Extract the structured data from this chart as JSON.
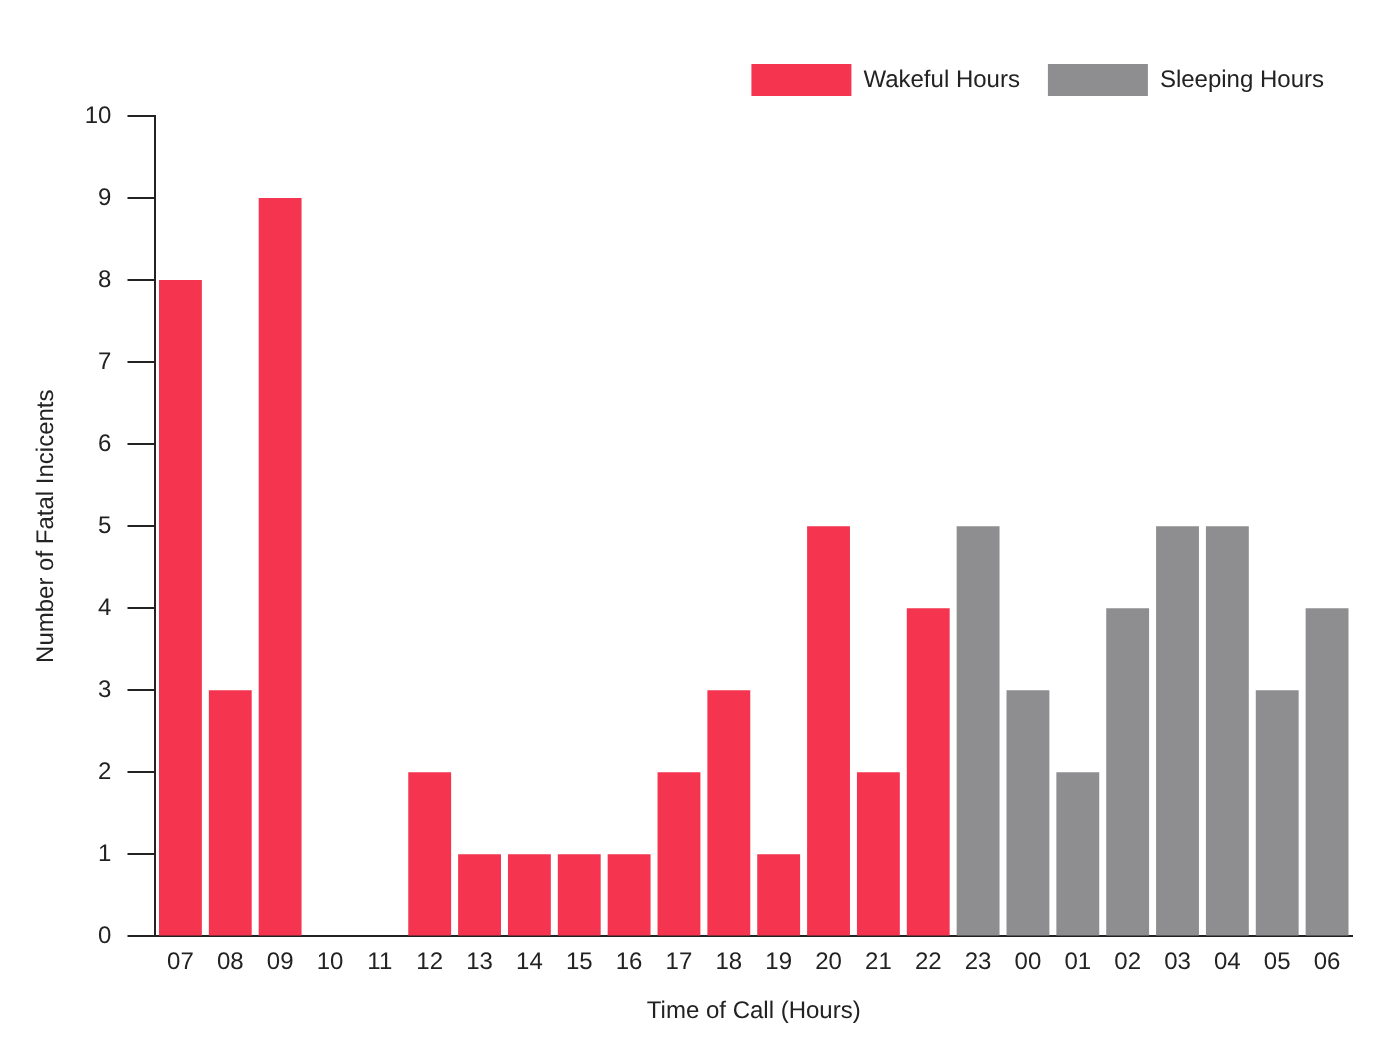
{
  "chart_data": {
    "type": "bar",
    "xlabel": "Time of Call (Hours)",
    "ylabel": "Number of Fatal Incicents",
    "categories": [
      "07",
      "08",
      "09",
      "10",
      "11",
      "12",
      "13",
      "14",
      "15",
      "16",
      "17",
      "18",
      "19",
      "20",
      "21",
      "22",
      "23",
      "00",
      "01",
      "02",
      "03",
      "04",
      "05",
      "06"
    ],
    "series": [
      {
        "name": "Wakeful Hours",
        "color": "#f5354f",
        "values": [
          8,
          3,
          9,
          0,
          0,
          2,
          1,
          1,
          1,
          1,
          2,
          3,
          1,
          5,
          2,
          4,
          null,
          null,
          null,
          null,
          null,
          null,
          null,
          null
        ]
      },
      {
        "name": "Sleeping Hours",
        "color": "#8e8e90",
        "values": [
          null,
          null,
          null,
          null,
          null,
          null,
          null,
          null,
          null,
          null,
          null,
          null,
          null,
          null,
          null,
          null,
          5,
          3,
          2,
          4,
          5,
          5,
          3,
          4
        ]
      }
    ],
    "ylim": [
      0,
      10
    ],
    "yticks": [
      0,
      1,
      2,
      3,
      4,
      5,
      6,
      7,
      8,
      9,
      10
    ],
    "grid": false,
    "legend": "top right"
  }
}
